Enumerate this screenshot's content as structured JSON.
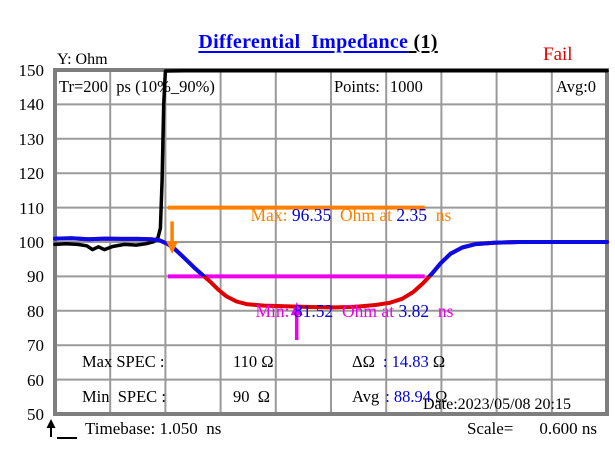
{
  "title": {
    "main": "Differential  Impedance",
    "suffix": " (1)"
  },
  "status": "Fail",
  "y_axis_label": "Y: Ohm",
  "header": {
    "tr": "Tr=200  ps (10%_90%)",
    "points_label": "Points:",
    "points_value": "1000",
    "avg": "Avg:0"
  },
  "annotations": {
    "max": {
      "label": "Max: ",
      "value": "96.35",
      "mid": "  Ohm at ",
      "time": "2.35",
      "unit": "  ns"
    },
    "min": {
      "label": "Min: ",
      "value": "81.52",
      "mid": "  Ohm at ",
      "time": "3.82",
      "unit": "  ns"
    }
  },
  "readouts": {
    "max_spec_label": "Max SPEC :",
    "max_spec_value": "110 Ω",
    "min_spec_label": "Min  SPEC :",
    "min_spec_value": "90  Ω",
    "delta_label": "ΔΩ",
    "delta_value": ": 14.83",
    "delta_unit": " Ω",
    "avg_label": "Avg",
    "avg_value": ": 88.94",
    "avg_unit": " Ω",
    "date": "Date:2023/05/08 20:15"
  },
  "footer": {
    "timebase": "Timebase: 1.050  ns",
    "scale_label": "Scale=",
    "scale_value": "0.600 ns"
  },
  "axis": {
    "y_ticks": [
      "150",
      "140",
      "130",
      "120",
      "110",
      "100",
      "90",
      "80",
      "70",
      "60",
      "50"
    ]
  },
  "colors": {
    "title_blue": "#0000FF",
    "value_blue": "#0000DD",
    "fail_red": "#E10000",
    "orange": "#FF8000",
    "magenta": "#EE00EE",
    "curve_blue": "#0B0BE6",
    "curve_red": "#E10000",
    "curve_black": "#000000",
    "grid": "#9A9A9A",
    "border": "#7E7E7E"
  },
  "chart_data": {
    "type": "line",
    "title": "Differential Impedance (1)",
    "ylabel": "Ohm",
    "xlabel": "ns",
    "x_range": [
      1.05,
      7.65
    ],
    "y_range": [
      50,
      150
    ],
    "grid": {
      "cols": 10,
      "rows": 10,
      "x_per_div_ns": 0.6,
      "y_per_div_ohm": 10
    },
    "result": "Fail",
    "max_spec_ohm": 110,
    "min_spec_ohm": 90,
    "max_marker": {
      "value_ohm": 96.35,
      "time_ns": 2.35
    },
    "min_marker": {
      "value_ohm": 81.52,
      "time_ns": 3.82
    },
    "delta_ohm": 14.83,
    "avg_ohm": 88.94,
    "timebase_ns": 1.05,
    "scale_ns_per_div": 0.6,
    "ref_lines": [
      {
        "name": "max-spec-line",
        "v": 110,
        "t_start": 2.4,
        "t_end": 5.47,
        "color": "#FF8000"
      },
      {
        "name": "min-spec-line",
        "v": 90,
        "t_start": 2.4,
        "t_end": 5.47,
        "color": "#EE00EE"
      }
    ],
    "arrows": [
      {
        "name": "max-marker-arrow",
        "t": 2.45,
        "v_from": 106.0,
        "v_to": 96.5,
        "color": "#FF8000"
      },
      {
        "name": "min-marker-arrow",
        "t": 3.94,
        "v_from": 71.5,
        "v_to": 82.5,
        "color": "#EE00EE"
      }
    ],
    "series": [
      {
        "name": "step-reference",
        "color": "#000000",
        "width": 3.5,
        "points": [
          [
            1.05,
            99.3
          ],
          [
            1.18,
            99.5
          ],
          [
            1.32,
            99.3
          ],
          [
            1.43,
            98.9
          ],
          [
            1.5,
            97.8
          ],
          [
            1.57,
            98.6
          ],
          [
            1.64,
            97.8
          ],
          [
            1.74,
            98.7
          ],
          [
            1.88,
            99.3
          ],
          [
            2.02,
            99.1
          ],
          [
            2.14,
            99.5
          ],
          [
            2.23,
            100.1
          ],
          [
            2.28,
            101.2
          ],
          [
            2.31,
            104.0
          ],
          [
            2.33,
            118.0
          ],
          [
            2.35,
            140.0
          ],
          [
            2.37,
            149.7
          ],
          [
            2.6,
            149.8
          ],
          [
            3.5,
            149.8
          ],
          [
            5.0,
            149.8
          ],
          [
            7.65,
            149.8
          ]
        ]
      },
      {
        "name": "differential-impedance",
        "color_in_spec": "#0B0BE6",
        "color_out_of_spec": "#E10000",
        "spec_split": 90,
        "width": 4,
        "points": [
          [
            1.05,
            101.0
          ],
          [
            1.25,
            101.1
          ],
          [
            1.45,
            100.8
          ],
          [
            1.65,
            101.0
          ],
          [
            1.85,
            100.9
          ],
          [
            2.05,
            100.9
          ],
          [
            2.2,
            100.8
          ],
          [
            2.3,
            100.5
          ],
          [
            2.4,
            99.4
          ],
          [
            2.48,
            98.0
          ],
          [
            2.56,
            96.2
          ],
          [
            2.64,
            94.3
          ],
          [
            2.73,
            92.2
          ],
          [
            2.81,
            90.5
          ],
          [
            2.9,
            88.6
          ],
          [
            3.0,
            86.2
          ],
          [
            3.1,
            84.2
          ],
          [
            3.22,
            82.7
          ],
          [
            3.35,
            81.9
          ],
          [
            3.55,
            81.5
          ],
          [
            3.8,
            81.3
          ],
          [
            4.1,
            81.1
          ],
          [
            4.4,
            81.0
          ],
          [
            4.65,
            81.2
          ],
          [
            4.88,
            81.7
          ],
          [
            5.05,
            82.3
          ],
          [
            5.2,
            83.5
          ],
          [
            5.33,
            85.4
          ],
          [
            5.45,
            88.0
          ],
          [
            5.55,
            90.6
          ],
          [
            5.66,
            93.8
          ],
          [
            5.78,
            96.6
          ],
          [
            5.92,
            98.4
          ],
          [
            6.08,
            99.4
          ],
          [
            6.3,
            99.8
          ],
          [
            6.6,
            100.0
          ],
          [
            7.0,
            100.0
          ],
          [
            7.65,
            100.0
          ]
        ]
      }
    ]
  }
}
